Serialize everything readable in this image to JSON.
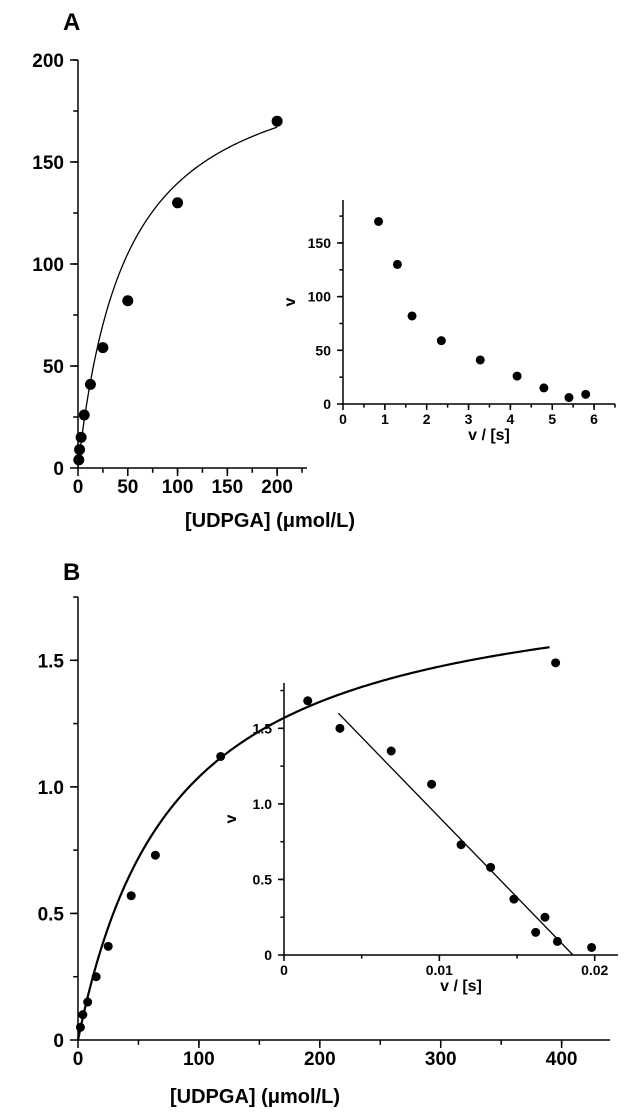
{
  "chart_data": [
    {
      "type": "scatter",
      "panel_label": "A",
      "xlabel": "[UDPGA] (μmol/L)",
      "ylabel": "",
      "xlim": [
        0,
        230
      ],
      "ylim": [
        0,
        200
      ],
      "xticks": [
        0,
        50,
        100,
        150,
        200
      ],
      "yticks": [
        0,
        50,
        100,
        150,
        200
      ],
      "points": [
        {
          "x": 0.78,
          "y": 4
        },
        {
          "x": 1.56,
          "y": 9
        },
        {
          "x": 3.13,
          "y": 15
        },
        {
          "x": 6.25,
          "y": 26
        },
        {
          "x": 12.5,
          "y": 41
        },
        {
          "x": 25,
          "y": 59
        },
        {
          "x": 50,
          "y": 82
        },
        {
          "x": 100,
          "y": 130
        },
        {
          "x": 200,
          "y": 170
        }
      ],
      "fit": {
        "form": "michaelis-menten",
        "vmax": 208,
        "km": 49,
        "x_range": [
          0,
          200
        ]
      },
      "inset": {
        "type": "scatter",
        "xlabel": "v / [s]",
        "ylabel": "v",
        "xlim": [
          0,
          6.5
        ],
        "ylim": [
          0,
          190
        ],
        "xticks": [
          0,
          1,
          2,
          3,
          4,
          5,
          6
        ],
        "yticks": [
          0,
          50,
          100,
          150
        ],
        "points": [
          {
            "x": 0.85,
            "y": 170
          },
          {
            "x": 1.3,
            "y": 130
          },
          {
            "x": 1.65,
            "y": 82
          },
          {
            "x": 2.35,
            "y": 59
          },
          {
            "x": 3.28,
            "y": 41
          },
          {
            "x": 4.16,
            "y": 26
          },
          {
            "x": 4.8,
            "y": 15
          },
          {
            "x": 5.4,
            "y": 6
          },
          {
            "x": 5.8,
            "y": 9
          }
        ]
      }
    },
    {
      "type": "scatter",
      "panel_label": "B",
      "xlabel": "[UDPGA] (μmol/L)",
      "ylabel": "",
      "xlim": [
        0,
        440
      ],
      "ylim": [
        0,
        1.75
      ],
      "xticks": [
        0,
        100,
        200,
        300,
        400
      ],
      "yticks": [
        0,
        0.5,
        1.0,
        1.5
      ],
      "ytick_labels": [
        "0",
        "0.5",
        "1.0",
        "1.5"
      ],
      "points": [
        {
          "x": 2,
          "y": 0.05
        },
        {
          "x": 4,
          "y": 0.1
        },
        {
          "x": 8,
          "y": 0.15
        },
        {
          "x": 15,
          "y": 0.25
        },
        {
          "x": 25,
          "y": 0.37
        },
        {
          "x": 44,
          "y": 0.57
        },
        {
          "x": 64,
          "y": 0.73
        },
        {
          "x": 118,
          "y": 1.12
        },
        {
          "x": 190,
          "y": 1.34
        },
        {
          "x": 395,
          "y": 1.49
        }
      ],
      "fit": {
        "form": "michaelis-menten",
        "vmax": 1.87,
        "km": 80,
        "x_range": [
          0,
          390
        ]
      },
      "inset": {
        "type": "scatter",
        "xlabel": "v / [s]",
        "ylabel": "v",
        "xlim": [
          0,
          0.0215
        ],
        "ylim": [
          0,
          1.8
        ],
        "xticks": [
          0,
          0.01,
          0.02
        ],
        "xtick_labels": [
          "0",
          "0.01",
          "0.02"
        ],
        "yticks": [
          0,
          0.5,
          1.0,
          1.5
        ],
        "ytick_labels": [
          "0",
          "0.5",
          "1.0",
          "1.5"
        ],
        "points": [
          {
            "x": 0.0036,
            "y": 1.5
          },
          {
            "x": 0.0069,
            "y": 1.35
          },
          {
            "x": 0.0095,
            "y": 1.13
          },
          {
            "x": 0.0114,
            "y": 0.73
          },
          {
            "x": 0.0133,
            "y": 0.58
          },
          {
            "x": 0.0148,
            "y": 0.37
          },
          {
            "x": 0.0162,
            "y": 0.15
          },
          {
            "x": 0.0168,
            "y": 0.25
          },
          {
            "x": 0.0176,
            "y": 0.09
          },
          {
            "x": 0.0198,
            "y": 0.05
          }
        ],
        "fit_line": {
          "x": [
            0.0035,
            0.0186
          ],
          "y": [
            1.6,
            0
          ]
        }
      }
    }
  ]
}
